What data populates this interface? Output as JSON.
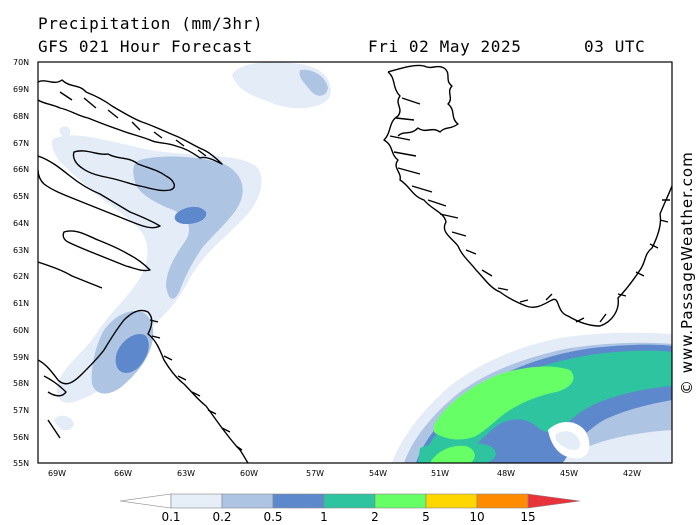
{
  "header": {
    "title": "Precipitation (mm/3hr)",
    "subtitle": "GFS 021 Hour Forecast",
    "date": "Fri 02 May 2025",
    "time": "03 UTC"
  },
  "watermark": "© www.PassageWeather.com",
  "map": {
    "lat_labels": [
      "70N",
      "69N",
      "68N",
      "67N",
      "66N",
      "65N",
      "64N",
      "63N",
      "62N",
      "61N",
      "60N",
      "59N",
      "58N",
      "57N",
      "56N",
      "55N"
    ],
    "lon_labels": [
      "69W",
      "66W",
      "63W",
      "60W",
      "57W",
      "54W",
      "51W",
      "48W",
      "45W",
      "42W"
    ],
    "extent": {
      "lon": [
        -70,
        -40
      ],
      "lat": [
        55,
        70
      ]
    }
  },
  "colorbar": {
    "ticks": [
      "0.1",
      "0.2",
      "0.5",
      "1",
      "2",
      "5",
      "10",
      "15"
    ],
    "colors": [
      "#ffffff",
      "#e6eef8",
      "#aec4e3",
      "#5e88cc",
      "#2ec4a0",
      "#66ff66",
      "#ffd700",
      "#ff8c00",
      "#e8323c"
    ]
  }
}
